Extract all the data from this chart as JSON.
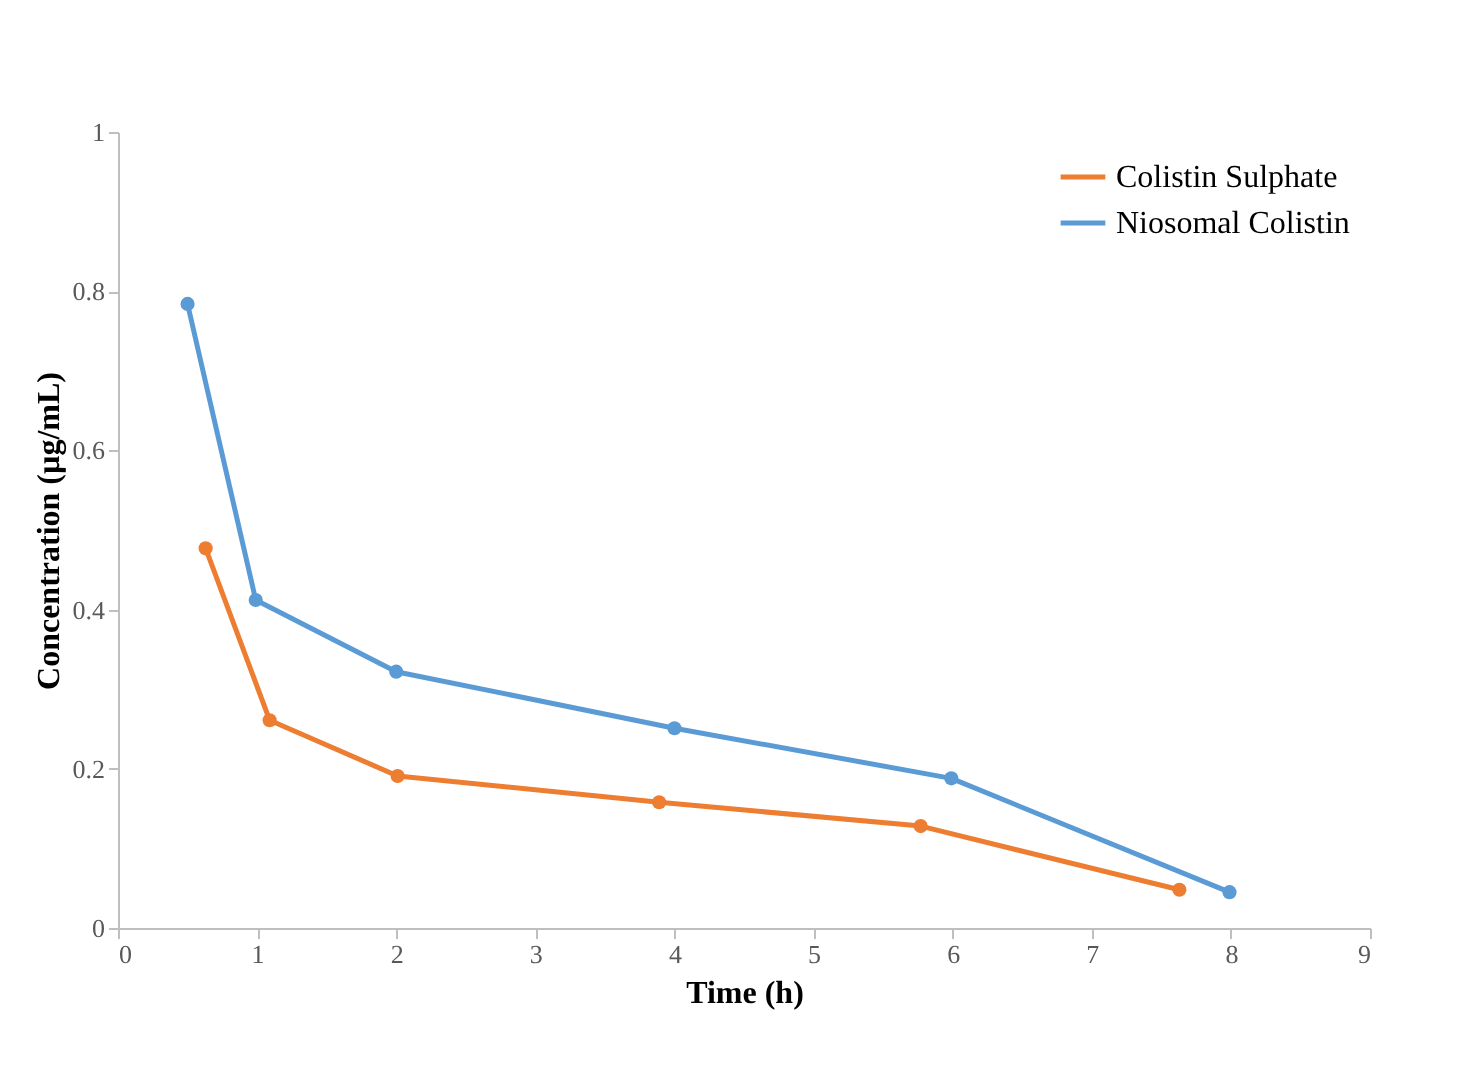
{
  "chart_data": {
    "type": "line",
    "xlabel": "Time (h)",
    "ylabel": "Concentration (µg/mL)",
    "xlim": [
      0,
      9
    ],
    "xticks": [
      0,
      1,
      2,
      3,
      4,
      5,
      6,
      7,
      8,
      9
    ],
    "ylim": [
      0,
      1
    ],
    "yticks": [
      0,
      0.2,
      0.4,
      0.6,
      0.8,
      1
    ],
    "grid": false,
    "legend": "top right",
    "marker": "circle",
    "line_style": "solid",
    "series": [
      {
        "name": "Colistin Sulphate",
        "color": "#ed7d31",
        "x": [
          0.63,
          1.09,
          2.01,
          3.89,
          5.77,
          7.63
        ],
        "values": [
          0.477,
          0.261,
          0.191,
          0.158,
          0.128,
          0.048
        ]
      },
      {
        "name": "Niosomal Colistin",
        "color": "#5b9bd5",
        "x": [
          0.5,
          0.99,
          2.0,
          4.0,
          5.99,
          7.99
        ],
        "values": [
          0.784,
          0.412,
          0.322,
          0.251,
          0.188,
          0.045
        ]
      }
    ]
  }
}
